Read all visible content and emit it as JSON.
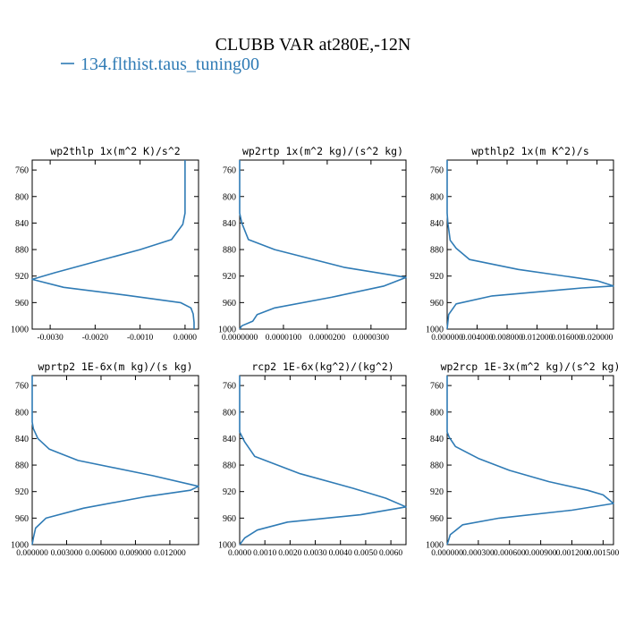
{
  "figure": {
    "title": "CLUBB VAR at280E,-12N",
    "legend_label": "134.flthist.taus_tuning00",
    "series_color": "#2f7bb5"
  },
  "chart_data": [
    {
      "type": "line",
      "title": "wp2thlp  1x(m^2 K)/s^2",
      "xlim": [
        -0.0034,
        0.0003
      ],
      "ylim": [
        745,
        1000
      ],
      "y_inverted": true,
      "yticks": [
        760,
        800,
        840,
        880,
        920,
        960,
        1000
      ],
      "yticklabels": [
        "760",
        "800",
        "840",
        "880",
        "920",
        "960",
        "1000"
      ],
      "xticks": [
        -0.003,
        -0.002,
        -0.001,
        0.0
      ],
      "xticklabels": [
        "-0.0030",
        "-0.0020",
        "-0.0010",
        "0.0000"
      ],
      "series": [
        {
          "x": [
            0.0,
            0.0,
            0.0,
            -5e-05,
            -0.0003,
            -0.001,
            -0.0029,
            -0.0034,
            -0.0027,
            -0.0013,
            -0.0001,
            0.00013,
            0.00018,
            0.0002,
            0.0002
          ],
          "y": [
            745,
            790,
            825,
            842,
            865,
            880,
            915,
            925,
            937,
            949,
            960,
            968,
            977,
            990,
            1000
          ]
        }
      ]
    },
    {
      "type": "line",
      "title": "wp2rtp  1x(m^2 kg)/(s^2 kg)",
      "xlim": [
        0.0,
        3.8e-05
      ],
      "ylim": [
        745,
        1000
      ],
      "y_inverted": true,
      "yticks": [
        760,
        800,
        840,
        880,
        920,
        960,
        1000
      ],
      "yticklabels": [
        "760",
        "800",
        "840",
        "880",
        "920",
        "960",
        "1000"
      ],
      "xticks": [
        0.0,
        1e-05,
        2e-05,
        3e-05
      ],
      "xticklabels": [
        "0.0000000",
        "0.0000100",
        "0.0000200",
        "0.0000300"
      ],
      "series": [
        {
          "x": [
            0.0,
            0.0,
            0.0,
            5e-07,
            2e-06,
            8e-06,
            2.4e-05,
            3.8e-05,
            3.3e-05,
            2.1e-05,
            8e-06,
            4e-06,
            3e-06,
            5e-07,
            0.0
          ],
          "y": [
            745,
            790,
            825,
            840,
            865,
            880,
            907,
            922,
            935,
            952,
            968,
            978,
            988,
            995,
            1000
          ]
        }
      ]
    },
    {
      "type": "line",
      "title": "wpthlp2  1x(m K^2)/s",
      "xlim": [
        0.0,
        0.0222
      ],
      "ylim": [
        745,
        1000
      ],
      "y_inverted": true,
      "yticks": [
        760,
        800,
        840,
        880,
        920,
        960,
        1000
      ],
      "yticklabels": [
        "760",
        "800",
        "840",
        "880",
        "920",
        "960",
        "1000"
      ],
      "xticks": [
        0.0,
        0.004,
        0.008,
        0.012,
        0.016,
        0.02
      ],
      "xticklabels": [
        "0.000000",
        "0.004000",
        "0.008000",
        "0.012000",
        "0.016000",
        "0.020000"
      ],
      "series": [
        {
          "x": [
            0.0,
            0.0,
            0.0,
            0.0001,
            0.0004,
            0.0012,
            0.003,
            0.0095,
            0.02,
            0.0222,
            0.018,
            0.006,
            0.0012,
            0.0002,
            0.0
          ],
          "y": [
            745,
            790,
            825,
            840,
            866,
            878,
            895,
            910,
            927,
            935,
            938,
            950,
            962,
            978,
            1000
          ]
        }
      ]
    },
    {
      "type": "line",
      "title": "wprtp2  1E-6x(m kg)/(s kg)",
      "xlim": [
        0.0,
        0.0145
      ],
      "ylim": [
        745,
        1000
      ],
      "y_inverted": true,
      "yticks": [
        760,
        800,
        840,
        880,
        920,
        960,
        1000
      ],
      "yticklabels": [
        "760",
        "800",
        "840",
        "880",
        "920",
        "960",
        "1000"
      ],
      "xticks": [
        0.0,
        0.003,
        0.006,
        0.009,
        0.012
      ],
      "xticklabels": [
        "0.000000",
        "0.003000",
        "0.006000",
        "0.009000",
        "0.012000"
      ],
      "series": [
        {
          "x": [
            0.0,
            0.0,
            0.0,
            0.0001,
            0.0005,
            0.0015,
            0.004,
            0.0105,
            0.0145,
            0.0138,
            0.0098,
            0.0045,
            0.0012,
            0.0003,
            0.0001,
            0.0
          ],
          "y": [
            745,
            790,
            815,
            825,
            840,
            856,
            873,
            896,
            912,
            918,
            928,
            945,
            960,
            975,
            990,
            1000
          ]
        }
      ]
    },
    {
      "type": "line",
      "title": "rcp2  1E-6x(kg^2)/(kg^2)",
      "xlim": [
        0.0,
        0.0066
      ],
      "ylim": [
        745,
        1000
      ],
      "y_inverted": true,
      "yticks": [
        760,
        800,
        840,
        880,
        920,
        960,
        1000
      ],
      "yticklabels": [
        "760",
        "800",
        "840",
        "880",
        "920",
        "960",
        "1000"
      ],
      "xticks": [
        0.0,
        0.001,
        0.002,
        0.003,
        0.004,
        0.005,
        0.006
      ],
      "xticklabels": [
        "0.0000",
        "0.0010",
        "0.0020",
        "0.0030",
        "0.0040",
        "0.0050",
        "0.0060"
      ],
      "series": [
        {
          "x": [
            0.0,
            0.0,
            0.0,
            0.0002,
            0.0006,
            0.0024,
            0.0045,
            0.0058,
            0.0066,
            0.0048,
            0.0019,
            0.0007,
            0.0002,
            0.0
          ],
          "y": [
            745,
            800,
            830,
            845,
            867,
            893,
            915,
            930,
            943,
            955,
            966,
            978,
            990,
            1000
          ]
        }
      ]
    },
    {
      "type": "line",
      "title": "wp2rcp  1E-3x(m^2 kg)/(s^2 kg)",
      "xlim": [
        0.0,
        0.0016
      ],
      "ylim": [
        745,
        1000
      ],
      "y_inverted": true,
      "yticks": [
        760,
        800,
        840,
        880,
        920,
        960,
        1000
      ],
      "yticklabels": [
        "760",
        "800",
        "840",
        "880",
        "920",
        "960",
        "1000"
      ],
      "xticks": [
        0.0,
        0.0003,
        0.0006,
        0.0009,
        0.0012,
        0.0015
      ],
      "xticklabels": [
        "0.000000",
        "0.000300",
        "0.000600",
        "0.000900",
        "0.001200",
        "0.001500"
      ],
      "series": [
        {
          "x": [
            0.0,
            0.0,
            0.0,
            2e-05,
            8e-05,
            0.0003,
            0.0006,
            0.00098,
            0.00135,
            0.0015,
            0.0016,
            0.0012,
            0.0005,
            0.00015,
            3e-05,
            0.0
          ],
          "y": [
            745,
            800,
            830,
            838,
            852,
            870,
            888,
            905,
            918,
            925,
            938,
            948,
            960,
            970,
            985,
            1000
          ]
        }
      ]
    }
  ]
}
